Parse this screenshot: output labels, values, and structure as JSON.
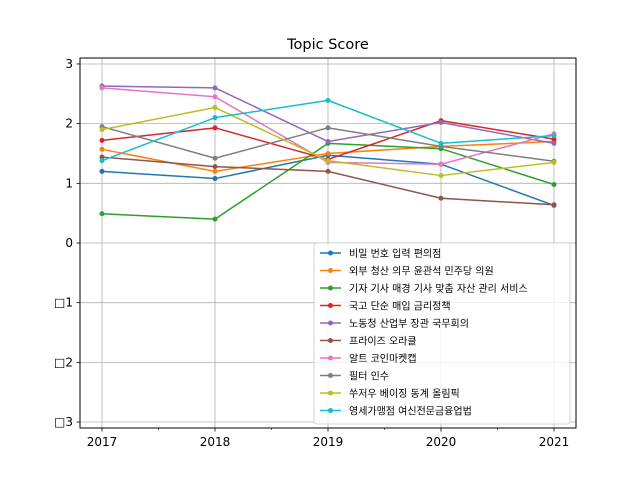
{
  "chart_data": {
    "type": "line",
    "title": "Topic Score",
    "xlabel": "",
    "ylabel": "",
    "x": [
      "2017",
      "2018",
      "2019",
      "2020",
      "2021"
    ],
    "ylim": [
      -3.1,
      3.1
    ],
    "yticks": [
      3,
      2,
      1,
      0,
      -1,
      -2,
      -3
    ],
    "ytick_labels": [
      "3",
      "2",
      "1",
      "0",
      "□1",
      "□2",
      "□3"
    ],
    "grid": true,
    "legend_position": "lower-right",
    "series": [
      {
        "name": "비밀 번호 입력 편의점",
        "color": "#1f77b4",
        "values": [
          1.2,
          1.08,
          1.47,
          1.32,
          0.63
        ]
      },
      {
        "name": "외부 청산 의무 윤관석 민주당 의원",
        "color": "#ff7f0e",
        "values": [
          1.57,
          1.2,
          1.5,
          1.62,
          1.7
        ]
      },
      {
        "name": "기자 기사 매경 기사 맞춤 자산 관리 서비스",
        "color": "#2ca02c",
        "values": [
          0.49,
          0.4,
          1.67,
          1.58,
          0.98
        ]
      },
      {
        "name": "국고 단순 매입 금리정책",
        "color": "#d62728",
        "values": [
          1.72,
          1.93,
          1.4,
          2.05,
          1.74
        ]
      },
      {
        "name": "노동청 산업부 장관 국무회의",
        "color": "#9467bd",
        "values": [
          2.63,
          2.6,
          1.7,
          2.02,
          1.67
        ]
      },
      {
        "name": "프라이즈 오라클",
        "color": "#8c564b",
        "values": [
          1.44,
          1.28,
          1.2,
          0.75,
          0.64
        ]
      },
      {
        "name": "알트 코인마켓캡",
        "color": "#e377c2",
        "values": [
          2.6,
          2.45,
          1.35,
          1.32,
          1.83
        ]
      },
      {
        "name": "필터 인수",
        "color": "#7f7f7f",
        "values": [
          1.95,
          1.42,
          1.93,
          1.62,
          1.37
        ]
      },
      {
        "name": "쑤저우 베이징 동계 올림픽",
        "color": "#bcbd22",
        "values": [
          1.9,
          2.27,
          1.38,
          1.13,
          1.35
        ]
      },
      {
        "name": "영세가맹점 여신전문금융업법",
        "color": "#17becf",
        "values": [
          1.38,
          2.1,
          2.39,
          1.67,
          1.8
        ]
      }
    ]
  }
}
